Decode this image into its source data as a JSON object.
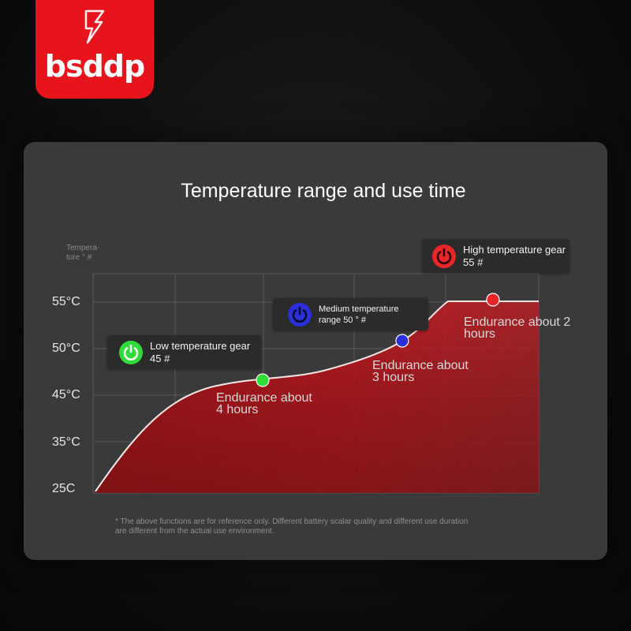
{
  "logo": {
    "text": "bsddp"
  },
  "chart_data": {
    "type": "area",
    "title": "Temperature range and use time",
    "ylabel": [
      "Tempera-",
      "ture ° #"
    ],
    "ytick_labels": [
      "55°C",
      "50°C",
      "45°C",
      "35°C",
      "25C"
    ],
    "colors": {
      "fill": "#d01a1f",
      "line": "#f5e6e6",
      "grid": "#5a5a5a"
    },
    "grid": true,
    "gears": [
      {
        "name": "Low temperature gear",
        "value": "45 #",
        "color": "#2fdc3a",
        "icon": "power-icon"
      },
      {
        "name": "Medium temperature",
        "value": "range 50 ° #",
        "color": "#2a2fd8",
        "icon": "power-icon"
      },
      {
        "name": "High temperature gear",
        "value": "55 #",
        "color": "#e8262a",
        "icon": "power-icon"
      }
    ],
    "endurance": [
      {
        "line1": "Endurance about",
        "line2": "4 hours"
      },
      {
        "line1": "Endurance about",
        "line2": "3 hours"
      },
      {
        "line1": "Endurance about 2",
        "line2": "hours"
      }
    ]
  },
  "footnote": {
    "line1": "* The above functions are for reference only. Different battery scalar quality and different use duration",
    "line2": "are different from the actual use environment."
  }
}
